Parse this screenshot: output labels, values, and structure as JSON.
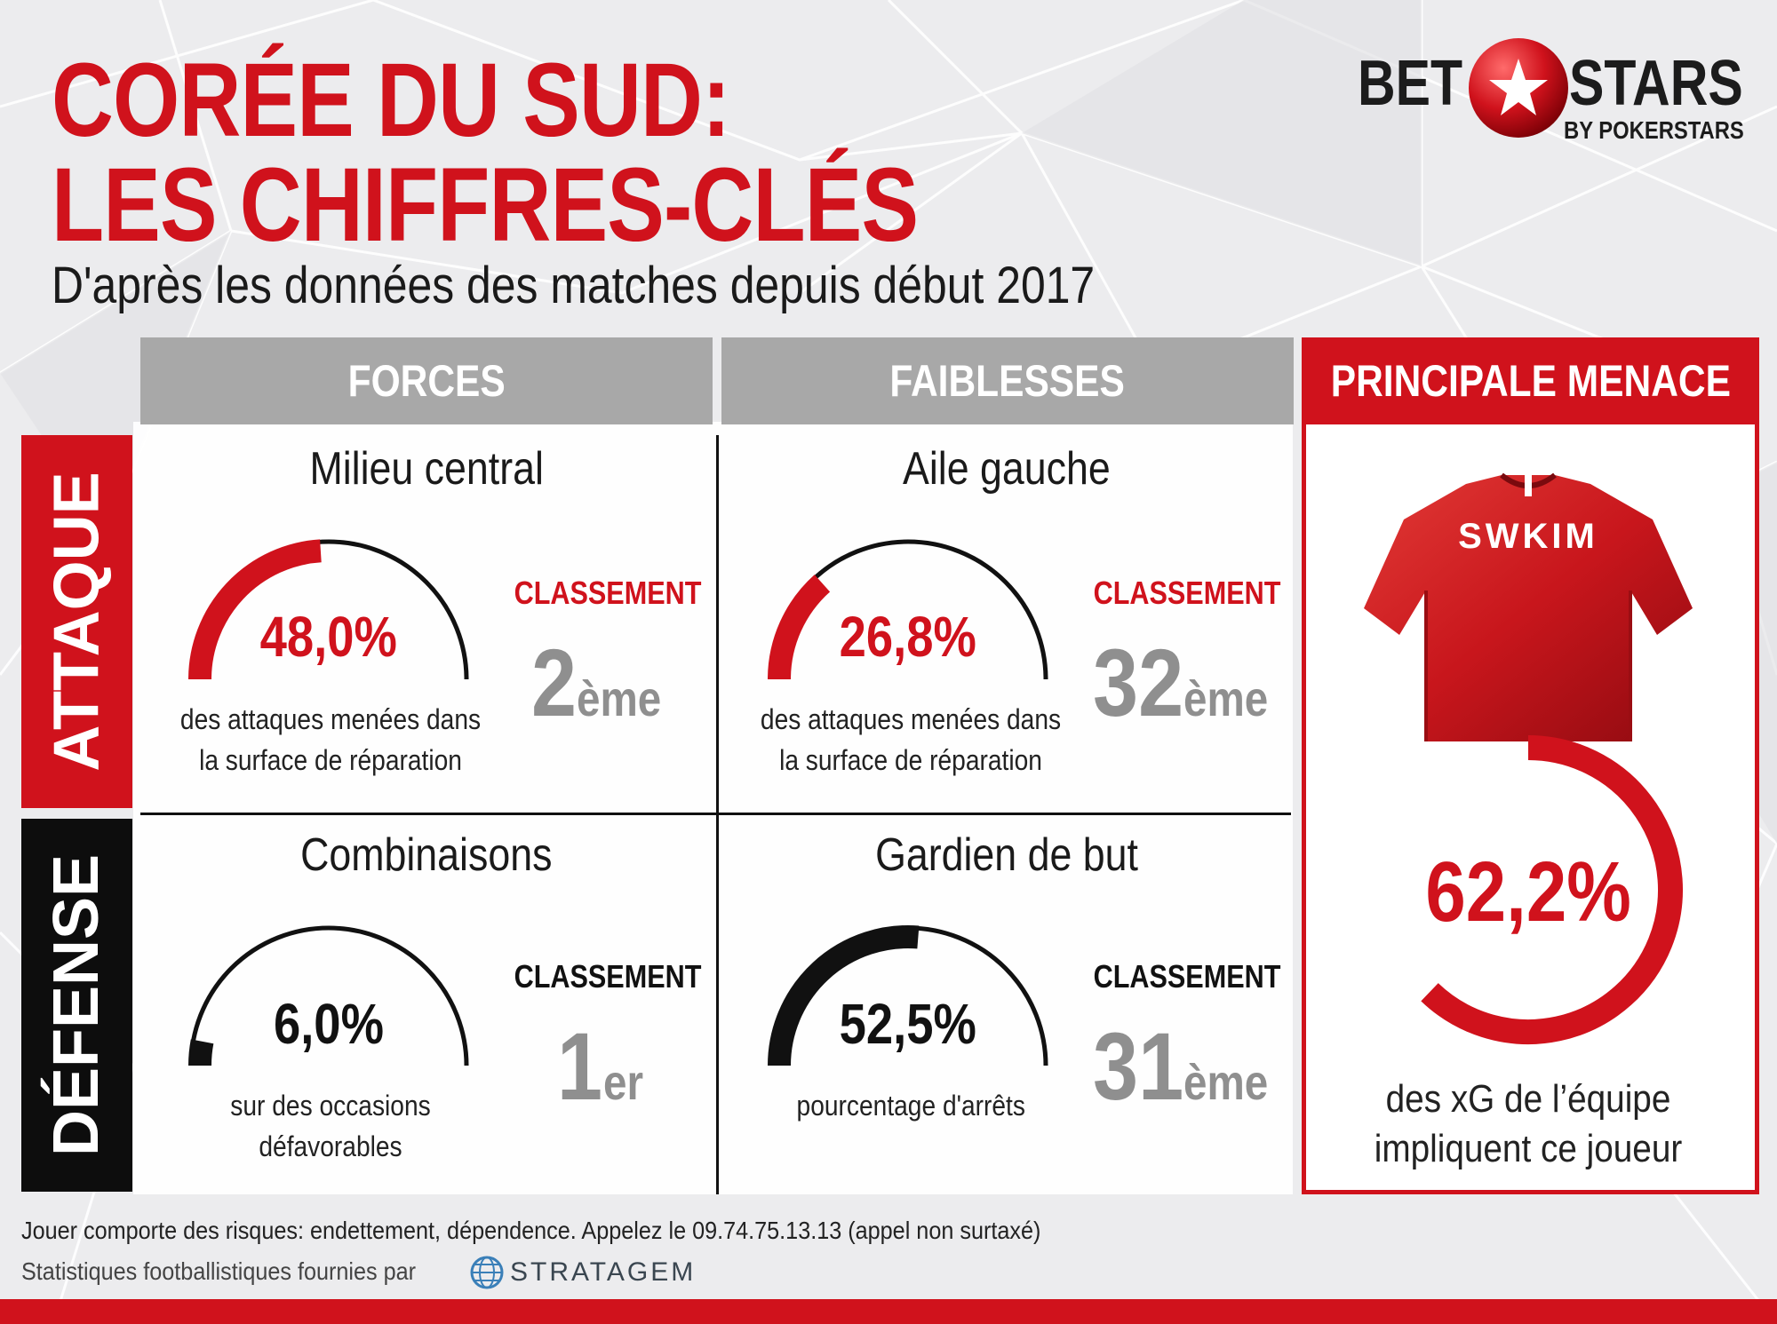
{
  "header": {
    "title_line1": "CORÉE DU SUD:",
    "title_line2": "LES CHIFFRES-CLÉS",
    "subtitle": "D'après les données des matches depuis début 2017"
  },
  "logo": {
    "word_left": "BET",
    "word_right": "STARS",
    "tagline": "BY POKERSTARS"
  },
  "columns": {
    "forces": "FORCES",
    "faiblesses": "FAIBLESSES",
    "menace": "PRINCIPALE MENACE"
  },
  "rows": {
    "attaque": "ATTAQUE",
    "defense": "DÉFENSE"
  },
  "cells": [
    {
      "title": "Milieu central",
      "value": 48.0,
      "value_label": "48,0%",
      "desc": "des attaques menées dans la surface de réparation",
      "rank_label": "CLASSEMENT",
      "rank_num": "2",
      "rank_suffix": "ème",
      "color": "#d0121c"
    },
    {
      "title": "Aile gauche",
      "value": 26.8,
      "value_label": "26,8%",
      "desc": "des attaques menées dans la surface de réparation",
      "rank_label": "CLASSEMENT",
      "rank_num": "32",
      "rank_suffix": "ème",
      "color": "#d0121c"
    },
    {
      "title": "Combinaisons",
      "value": 6.0,
      "value_label": "6,0%",
      "desc": "sur des occasions défavorables",
      "rank_label": "CLASSEMENT",
      "rank_num": "1",
      "rank_suffix": "er",
      "color": "#111111"
    },
    {
      "title": "Gardien de but",
      "value": 52.5,
      "value_label": "52,5%",
      "desc": "pourcentage d'arrêts",
      "rank_label": "CLASSEMENT",
      "rank_num": "31",
      "rank_suffix": "ème",
      "color": "#111111"
    }
  ],
  "menace": {
    "shirt_name": "SWKIM",
    "value": 62.2,
    "value_label": "62,2%",
    "desc": "des xG de l’équipe impliquent ce joueur"
  },
  "footer": {
    "disclaimer": "Jouer comporte des risques: endettement, dépendence. Appelez le 09.74.75.13.13 (appel non surtaxé)",
    "stats_credit": "Statistiques footballistiques fournies par",
    "provider": "STRATAGEM"
  },
  "colors": {
    "accent_red": "#d0121c",
    "header_gray": "#a8a8a8",
    "rank_gray": "#8f8f8f",
    "black": "#111111"
  }
}
